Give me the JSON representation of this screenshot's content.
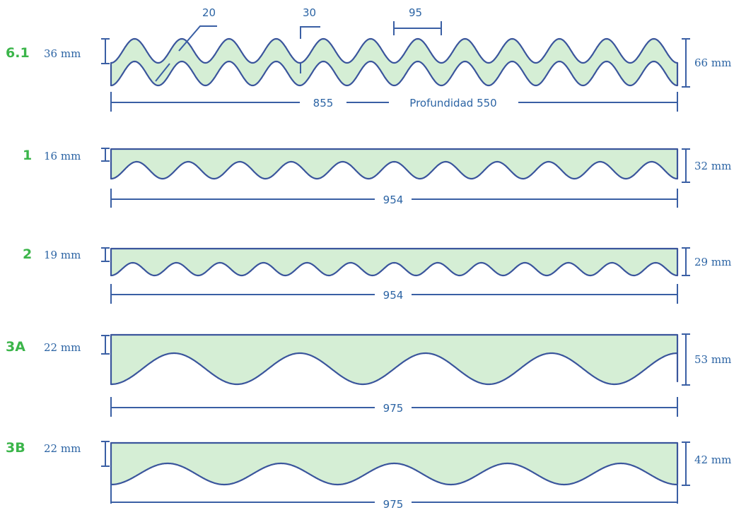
{
  "profiles": [
    {
      "code": "6.1",
      "left_height": "36 mm",
      "right_height": "66 mm",
      "width_label": "855",
      "depth_label": "Profundidad 550"
    },
    {
      "code": "1",
      "left_height": "16 mm",
      "right_height": "32 mm",
      "width_label": "954"
    },
    {
      "code": "2",
      "left_height": "19 mm",
      "right_height": "29 mm",
      "width_label": "954"
    },
    {
      "code": "3A",
      "left_height": "22 mm",
      "right_height": "53 mm",
      "width_label": "975"
    },
    {
      "code": "3B",
      "left_height": "22 mm",
      "right_height": "42 mm",
      "width_label": "975"
    }
  ],
  "details": {
    "thickness": "20",
    "gap": "30",
    "pitch": "95"
  },
  "colors": {
    "fill": "#d5eed5",
    "outline": "#3a559c",
    "dimension": "#2c64a4",
    "code": "#3bb54a"
  }
}
